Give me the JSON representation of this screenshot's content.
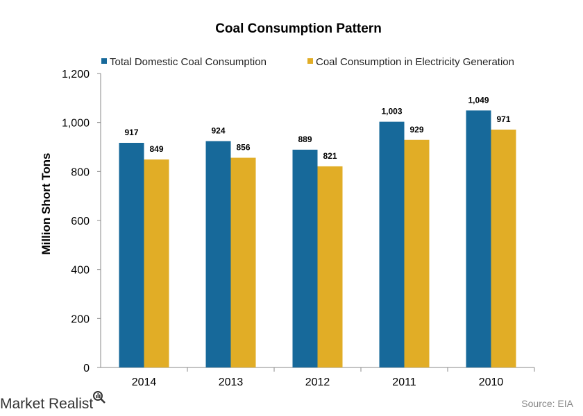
{
  "chart_data": {
    "type": "bar",
    "title": "Coal  Consumption  Pattern",
    "ylabel": "Million Short Tons",
    "xlabel": "",
    "categories": [
      "2014",
      "2013",
      "2012",
      "2011",
      "2010"
    ],
    "series": [
      {
        "name": "Total Domestic Coal Consumption",
        "color": "#17699a",
        "values": [
          917,
          924,
          889,
          1003,
          1049
        ],
        "labels": [
          "917",
          "924",
          "889",
          "1,003",
          "1,049"
        ]
      },
      {
        "name": "Coal Consumption in Electricity Generation",
        "color": "#e1ad26",
        "values": [
          849,
          856,
          821,
          929,
          971
        ],
        "labels": [
          "849",
          "856",
          "821",
          "929",
          "971"
        ]
      }
    ],
    "ylim": [
      0,
      1200
    ],
    "yticks": [
      0,
      200,
      400,
      600,
      800,
      1000,
      1200
    ],
    "ytick_labels": [
      "0",
      "200",
      "400",
      "600",
      "800",
      "1,000",
      "1,200"
    ],
    "grid": false,
    "legend_position": "top"
  },
  "footer": {
    "brand": "Market Realist",
    "brand_icon": "magnifier-icon",
    "source": "Source:  EIA"
  }
}
